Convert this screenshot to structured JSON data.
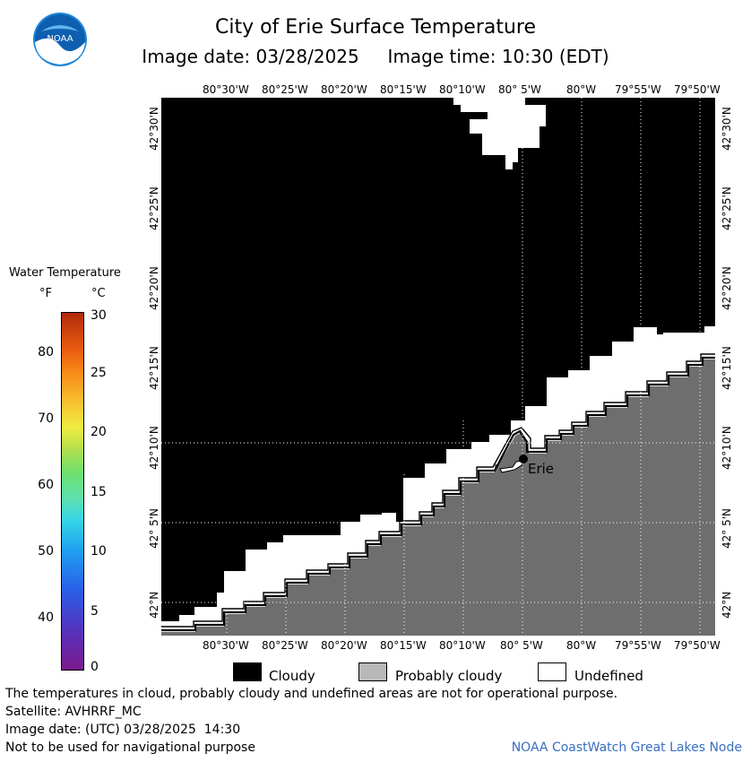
{
  "header": {
    "title": "City of Erie Surface Temperature",
    "subtitle": "Image date: 03/28/2025     Image time: 10:30 (EDT)"
  },
  "logo": {
    "text": "NOAA",
    "icon": "noaa-logo-icon"
  },
  "map": {
    "lon_labels": [
      "80°30'W",
      "80°25'W",
      "80°20'W",
      "80°15'W",
      "80°10'W",
      "80° 5'W",
      "80°W",
      "79°55'W",
      "79°50'W"
    ],
    "lat_labels": [
      "42°30'N",
      "42°25'N",
      "42°20'N",
      "42°15'N",
      "42°10'N",
      "42° 5'N",
      "42°N"
    ],
    "city_label": "Erie",
    "colors": {
      "cloudy": "#000000",
      "probably_cloudy": "#6e6e6e",
      "undefined": "#ffffff",
      "grid": "#ffffff"
    }
  },
  "legend": {
    "title": "Water Temperature",
    "unit_f": "°F",
    "unit_c": "°C",
    "f_ticks": [
      "80",
      "70",
      "60",
      "50",
      "40"
    ],
    "c_ticks": [
      "30",
      "25",
      "20",
      "15",
      "10",
      "5",
      "0"
    ]
  },
  "key": {
    "cloudy_label": "Cloudy",
    "probably_cloudy_label": "Probably cloudy",
    "undefined_label": "Undefined"
  },
  "footer": {
    "note": "The temperatures in cloud, probably cloudy and undefined areas are not for operational purpose.",
    "satellite": "Satellite: AVHRRF_MC",
    "utc": "Image date: (UTC) 03/28/2025  14:30",
    "nav": "Not to be used for navigational purpose",
    "credit": "NOAA CoastWatch Great Lakes Node"
  }
}
